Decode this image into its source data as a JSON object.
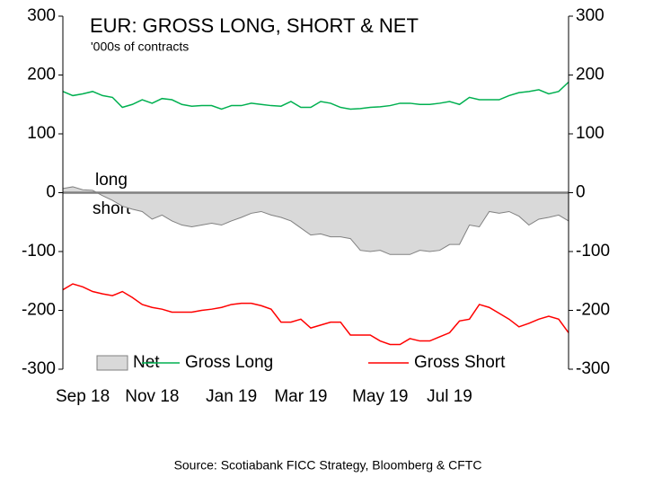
{
  "chart_data": {
    "type": "line",
    "title": "EUR: GROSS LONG, SHORT & NET",
    "subtitle": "'000s of contracts",
    "annotations": [
      "long",
      "short"
    ],
    "source": "Source: Scotiabank FICC  Strategy, Bloomberg & CFTC",
    "categories": [
      null,
      null,
      "Sep 18",
      null,
      null,
      null,
      null,
      null,
      null,
      "Nov 18",
      null,
      null,
      null,
      null,
      null,
      null,
      null,
      "Jan 19",
      null,
      null,
      null,
      null,
      null,
      null,
      "Mar 19",
      null,
      null,
      null,
      null,
      null,
      null,
      null,
      "May 19",
      null,
      null,
      null,
      null,
      null,
      null,
      "Jul 19",
      null,
      null,
      null,
      null,
      null,
      null,
      null,
      null,
      null,
      null,
      null,
      null
    ],
    "series": [
      {
        "name": "Net",
        "type": "area",
        "color": "#d9d9d9",
        "line_color": "#808080",
        "values": [
          7,
          10,
          5,
          4,
          -5,
          -13,
          -23,
          -28,
          -32,
          -45,
          -38,
          -48,
          -55,
          -58,
          -55,
          -52,
          -55,
          -48,
          -42,
          -35,
          -32,
          -38,
          -42,
          -48,
          -60,
          -72,
          -70,
          -75,
          -75,
          -78,
          -98,
          -100,
          -98,
          -105,
          -105,
          -105,
          -98,
          -100,
          -98,
          -88,
          -88,
          -55,
          -58,
          -32,
          -35,
          -32,
          -40,
          -55,
          -45,
          -42,
          -38,
          -48
        ]
      },
      {
        "name": "Gross Long",
        "type": "line",
        "color": "#00b050",
        "values": [
          172,
          165,
          168,
          172,
          165,
          162,
          145,
          150,
          158,
          152,
          160,
          158,
          150,
          147,
          148,
          148,
          142,
          148,
          148,
          152,
          150,
          148,
          147,
          155,
          145,
          145,
          155,
          152,
          145,
          142,
          143,
          145,
          146,
          148,
          152,
          152,
          150,
          150,
          152,
          155,
          150,
          162,
          158,
          158,
          158,
          165,
          170,
          172,
          175,
          168,
          172,
          188
        ]
      },
      {
        "name": "Gross Short",
        "type": "line",
        "color": "#ff0000",
        "values": [
          -165,
          -155,
          -160,
          -168,
          -172,
          -175,
          -168,
          -178,
          -190,
          -195,
          -198,
          -203,
          -203,
          -203,
          -200,
          -198,
          -195,
          -190,
          -188,
          -188,
          -192,
          -198,
          -220,
          -220,
          -215,
          -230,
          -225,
          -220,
          -220,
          -242,
          -242,
          -242,
          -252,
          -258,
          -258,
          -248,
          -252,
          -252,
          -245,
          -238,
          -218,
          -215,
          -190,
          -195,
          -205,
          -215,
          -228,
          -222,
          -215,
          -210,
          -215,
          -238
        ]
      }
    ],
    "ylim": [
      -300,
      300
    ],
    "yticks": [
      -300,
      -200,
      -100,
      0,
      100,
      200,
      300
    ],
    "y2lim": [
      -300,
      300
    ],
    "y2ticks": [
      -300,
      -200,
      -100,
      0,
      100,
      200,
      300
    ]
  }
}
